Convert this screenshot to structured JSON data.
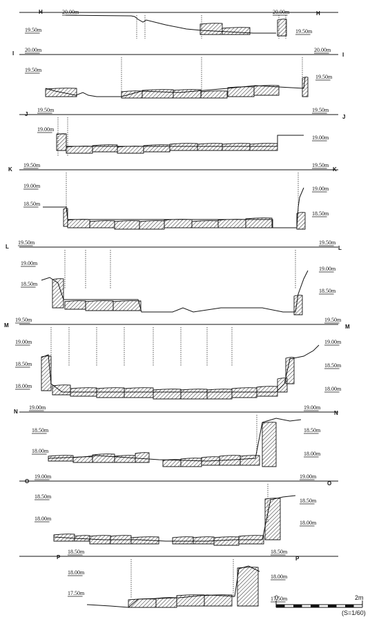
{
  "scale": {
    "zero_label": "0",
    "max_label": "2m",
    "ratio_label": "(S=1/60)"
  },
  "sections": [
    {
      "id": "H",
      "datum": "20.00m",
      "level_labels": [
        "19.50m"
      ]
    },
    {
      "id": "I",
      "datum": "20.00m",
      "level_labels": [
        "19.50m"
      ]
    },
    {
      "id": "J",
      "datum": "19.50m",
      "level_labels": [
        "19.00m"
      ]
    },
    {
      "id": "K",
      "datum": "19.50m",
      "level_labels": [
        "19.00m",
        "18.50m"
      ]
    },
    {
      "id": "L",
      "datum": "19.50m",
      "level_labels": [
        "19.00m",
        "18.50m"
      ]
    },
    {
      "id": "M",
      "datum": "19.50m",
      "level_labels": [
        "19.00m",
        "18.50m",
        "18.00m"
      ]
    },
    {
      "id": "N",
      "datum": "19.00m",
      "level_labels": [
        "18.50m",
        "18.00m"
      ]
    },
    {
      "id": "O",
      "datum": "19.00m",
      "level_labels": [
        "18.50m",
        "18.00m"
      ]
    },
    {
      "id": "P",
      "datum": "18.50m",
      "level_labels": [
        "18.00m",
        "17.50m"
      ]
    }
  ]
}
